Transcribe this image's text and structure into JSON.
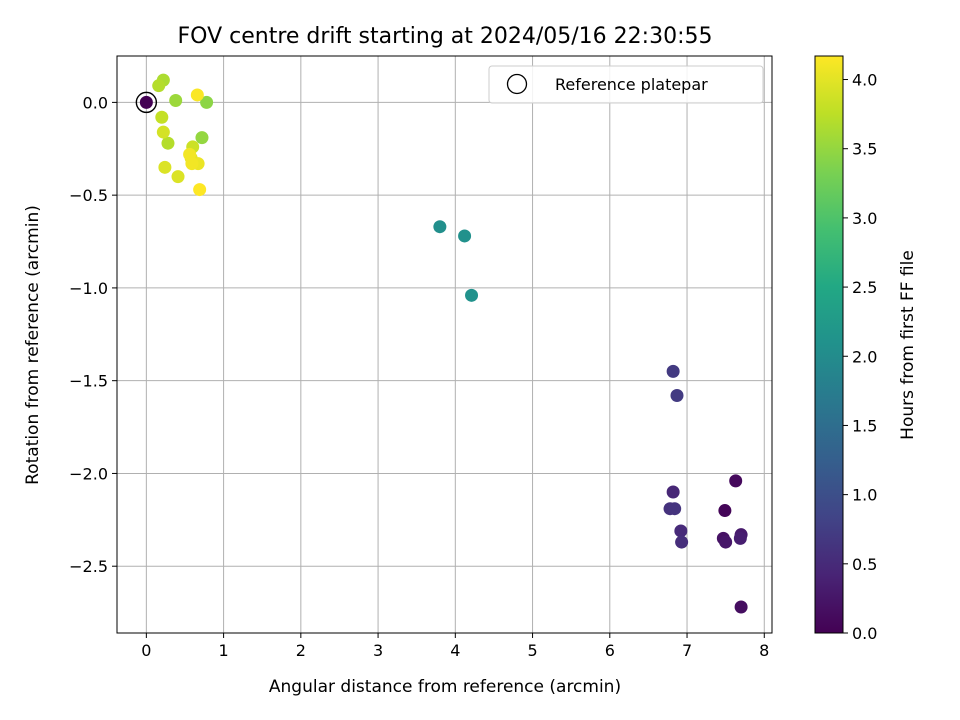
{
  "chart_data": {
    "type": "scatter",
    "title": "FOV centre drift starting at 2024/05/16 22:30:55",
    "xlabel": "Angular distance from reference (arcmin)",
    "ylabel": "Rotation from reference (arcmin)",
    "xlim": [
      -0.38,
      8.1
    ],
    "ylim": [
      -2.86,
      0.25
    ],
    "xticks": [
      0,
      1,
      2,
      3,
      4,
      5,
      6,
      7,
      8
    ],
    "xtick_labels": [
      "0",
      "1",
      "2",
      "3",
      "4",
      "5",
      "6",
      "7",
      "8"
    ],
    "yticks": [
      0.0,
      -0.5,
      -1.0,
      -1.5,
      -2.0,
      -2.5
    ],
    "ytick_labels": [
      "0.0",
      "−0.5",
      "−1.0",
      "−1.5",
      "−2.0",
      "−2.5"
    ],
    "grid": true,
    "legend": {
      "position": "top-right",
      "entries": [
        "Reference platepar"
      ]
    },
    "colorbar": {
      "label": "Hours from first FF file",
      "range": [
        0.0,
        4.17
      ],
      "colormap": "viridis",
      "ticks": [
        0.0,
        0.5,
        1.0,
        1.5,
        2.0,
        2.5,
        3.0,
        3.5,
        4.0
      ],
      "tick_labels": [
        "0.0",
        "0.5",
        "1.0",
        "1.5",
        "2.0",
        "2.5",
        "3.0",
        "3.5",
        "4.0"
      ]
    },
    "reference_point": {
      "x": 0.0,
      "y": 0.0
    },
    "points": [
      {
        "x": 0.0,
        "y": 0.0,
        "hours": 0.0
      },
      {
        "x": 7.49,
        "y": -2.2,
        "hours": 0.05
      },
      {
        "x": 7.63,
        "y": -2.04,
        "hours": 0.1
      },
      {
        "x": 7.7,
        "y": -2.72,
        "hours": 0.15
      },
      {
        "x": 7.47,
        "y": -2.35,
        "hours": 0.2
      },
      {
        "x": 7.5,
        "y": -2.37,
        "hours": 0.25
      },
      {
        "x": 7.7,
        "y": -2.33,
        "hours": 0.3
      },
      {
        "x": 7.69,
        "y": -2.35,
        "hours": 0.35
      },
      {
        "x": 6.82,
        "y": -2.1,
        "hours": 0.45
      },
      {
        "x": 6.92,
        "y": -2.31,
        "hours": 0.5
      },
      {
        "x": 6.93,
        "y": -2.37,
        "hours": 0.55
      },
      {
        "x": 6.78,
        "y": -2.19,
        "hours": 0.6
      },
      {
        "x": 6.84,
        "y": -2.19,
        "hours": 0.62
      },
      {
        "x": 6.82,
        "y": -1.45,
        "hours": 0.7
      },
      {
        "x": 6.87,
        "y": -1.58,
        "hours": 0.72
      },
      {
        "x": 3.8,
        "y": -0.67,
        "hours": 2.05
      },
      {
        "x": 4.12,
        "y": -0.72,
        "hours": 2.08
      },
      {
        "x": 4.21,
        "y": -1.04,
        "hours": 2.1
      },
      {
        "x": 0.78,
        "y": 0.0,
        "hours": 3.45
      },
      {
        "x": 0.72,
        "y": -0.19,
        "hours": 3.5
      },
      {
        "x": 0.38,
        "y": 0.01,
        "hours": 3.55
      },
      {
        "x": 0.22,
        "y": 0.12,
        "hours": 3.65
      },
      {
        "x": 0.16,
        "y": 0.09,
        "hours": 3.7
      },
      {
        "x": 0.28,
        "y": -0.22,
        "hours": 3.7
      },
      {
        "x": 0.2,
        "y": -0.08,
        "hours": 3.8
      },
      {
        "x": 0.6,
        "y": -0.24,
        "hours": 3.85
      },
      {
        "x": 0.22,
        "y": -0.16,
        "hours": 3.9
      },
      {
        "x": 0.24,
        "y": -0.35,
        "hours": 3.95
      },
      {
        "x": 0.41,
        "y": -0.4,
        "hours": 3.95
      },
      {
        "x": 0.58,
        "y": -0.3,
        "hours": 4.0
      },
      {
        "x": 0.67,
        "y": -0.33,
        "hours": 4.05
      },
      {
        "x": 0.56,
        "y": -0.28,
        "hours": 4.1
      },
      {
        "x": 0.59,
        "y": -0.33,
        "hours": 4.1
      },
      {
        "x": 0.66,
        "y": 0.04,
        "hours": 4.15
      },
      {
        "x": 0.69,
        "y": -0.47,
        "hours": 4.17
      }
    ]
  }
}
